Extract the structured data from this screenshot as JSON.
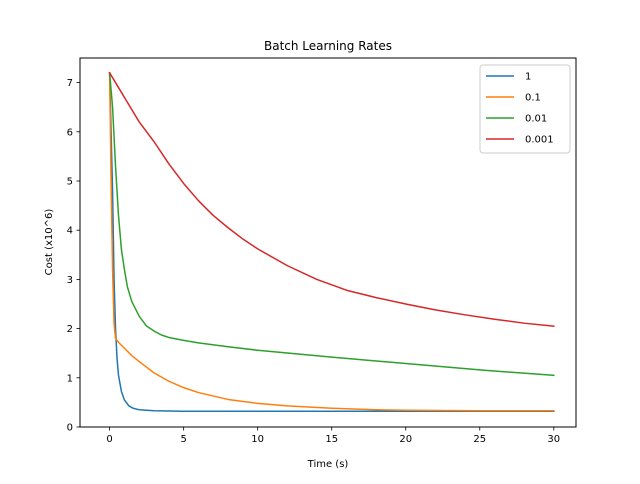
{
  "chart_data": {
    "type": "line",
    "title": "Batch Learning Rates",
    "xlabel": "Time (s)",
    "ylabel": "Cost (x10^6)",
    "xlim": [
      -2,
      31.5
    ],
    "ylim": [
      0,
      7.5
    ],
    "xticks": [
      0,
      5,
      10,
      15,
      20,
      25,
      30
    ],
    "yticks": [
      0,
      1,
      2,
      3,
      4,
      5,
      6,
      7
    ],
    "grid": false,
    "legend_position": "top-right",
    "series": [
      {
        "name": "1",
        "color": "#1f77b4",
        "x": [
          0,
          0.2,
          0.3,
          0.4,
          0.5,
          0.6,
          0.8,
          1.0,
          1.3,
          1.6,
          2.0,
          3.0,
          5.0,
          10,
          15,
          20,
          25,
          30
        ],
        "y": [
          7.2,
          4.8,
          3.0,
          2.0,
          1.4,
          1.05,
          0.72,
          0.55,
          0.43,
          0.38,
          0.35,
          0.33,
          0.32,
          0.32,
          0.32,
          0.32,
          0.32,
          0.32
        ]
      },
      {
        "name": "0.1",
        "color": "#ff7f0e",
        "x": [
          0,
          0.1,
          0.2,
          0.3,
          0.4,
          0.6,
          1.0,
          1.5,
          2.0,
          3.0,
          4.0,
          5.0,
          6.0,
          8.0,
          10,
          12,
          15,
          18,
          20,
          25,
          30
        ],
        "y": [
          7.2,
          5.0,
          3.2,
          2.1,
          1.8,
          1.72,
          1.6,
          1.45,
          1.33,
          1.1,
          0.93,
          0.8,
          0.7,
          0.56,
          0.48,
          0.43,
          0.38,
          0.35,
          0.34,
          0.33,
          0.33
        ]
      },
      {
        "name": "0.01",
        "color": "#2ca02c",
        "x": [
          0,
          0.2,
          0.4,
          0.6,
          0.8,
          1.0,
          1.2,
          1.5,
          2.0,
          2.5,
          3.0,
          3.5,
          4.0,
          5.0,
          6.0,
          8.0,
          10,
          15,
          20,
          25,
          30
        ],
        "y": [
          7.2,
          6.5,
          5.3,
          4.3,
          3.6,
          3.2,
          2.85,
          2.55,
          2.25,
          2.05,
          1.95,
          1.87,
          1.82,
          1.76,
          1.71,
          1.63,
          1.56,
          1.42,
          1.29,
          1.16,
          1.05
        ]
      },
      {
        "name": "0.001",
        "color": "#d62728",
        "x": [
          0,
          0.5,
          1.0,
          1.5,
          2.0,
          3.0,
          4.0,
          5.0,
          6.0,
          7.0,
          8.0,
          9.0,
          10,
          12,
          14,
          16,
          18,
          20,
          22,
          24,
          26,
          28,
          30
        ],
        "y": [
          7.2,
          6.95,
          6.7,
          6.45,
          6.2,
          5.8,
          5.35,
          4.95,
          4.6,
          4.3,
          4.05,
          3.82,
          3.62,
          3.28,
          3.0,
          2.78,
          2.63,
          2.5,
          2.38,
          2.28,
          2.19,
          2.11,
          2.05
        ]
      }
    ]
  }
}
